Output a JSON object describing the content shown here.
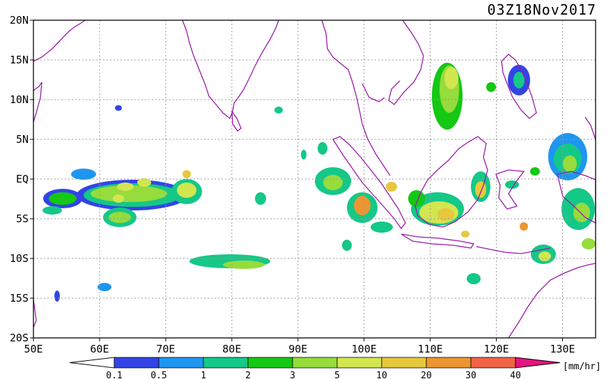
{
  "title": "03Z18Nov2017",
  "lat_labels": [
    "20N",
    "15N",
    "10N",
    "5N",
    "EQ",
    "5S",
    "10S",
    "15S",
    "20S"
  ],
  "lon_labels": [
    "50E",
    "60E",
    "70E",
    "80E",
    "90E",
    "100E",
    "110E",
    "120E",
    "130E"
  ],
  "extent": {
    "lon_min": 50,
    "lon_max": 135,
    "lat_min": -20,
    "lat_max": 20
  },
  "colorbar": {
    "unit": "[mm/hr]",
    "levels": [
      "0.1",
      "0.5",
      "1",
      "2",
      "3",
      "5",
      "10",
      "20",
      "30",
      "40"
    ],
    "colors": [
      "#3344e6",
      "#1e96f0",
      "#14c887",
      "#14c814",
      "#96dc3c",
      "#d2e650",
      "#e6c83c",
      "#eb9632",
      "#f06446",
      "#e6147d"
    ],
    "below_color": "#ffffff",
    "above_color": "#e6147d"
  },
  "colors": {
    "coast": "#9a1aa8",
    "grid": "#9a9a9a"
  }
}
